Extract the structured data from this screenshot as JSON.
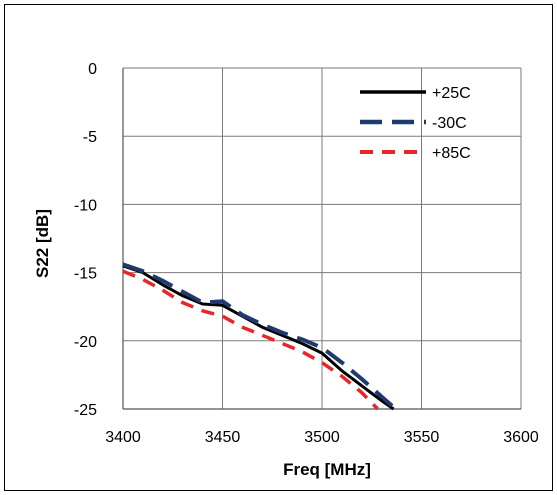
{
  "chart_data": {
    "type": "line",
    "xlabel": "Freq [MHz]",
    "ylabel": "S22 [dB]",
    "xlim": [
      3400,
      3600
    ],
    "ylim": [
      -25,
      0
    ],
    "x_ticks": [
      "3400",
      "3450",
      "3500",
      "3550",
      "3600"
    ],
    "y_ticks": [
      "0",
      "-5",
      "-10",
      "-15",
      "-20",
      "-25"
    ],
    "grid": true,
    "legend_position": "top-right",
    "series": [
      {
        "name": "+25C",
        "color": "#000000",
        "dash": "solid",
        "x": [
          3400,
          3410,
          3420,
          3430,
          3440,
          3450,
          3460,
          3470,
          3480,
          3490,
          3500,
          3510,
          3520,
          3530,
          3536
        ],
        "y": [
          -14.5,
          -15.0,
          -15.9,
          -16.7,
          -17.3,
          -17.4,
          -18.2,
          -19.0,
          -19.6,
          -20.2,
          -20.9,
          -22.2,
          -23.3,
          -24.4,
          -25.0
        ]
      },
      {
        "name": "-30C",
        "color": "#1f3a6e",
        "dash": "long-dash",
        "x": [
          3400,
          3410,
          3420,
          3430,
          3440,
          3450,
          3460,
          3470,
          3480,
          3490,
          3500,
          3510,
          3520,
          3530,
          3537
        ],
        "y": [
          -14.4,
          -14.9,
          -15.6,
          -16.4,
          -17.2,
          -17.1,
          -18.1,
          -18.8,
          -19.4,
          -19.9,
          -20.5,
          -21.6,
          -22.8,
          -24.1,
          -25.0
        ]
      },
      {
        "name": "+85C",
        "color": "#e8262a",
        "dash": "dash",
        "x": [
          3400,
          3410,
          3420,
          3430,
          3440,
          3450,
          3460,
          3470,
          3480,
          3490,
          3500,
          3510,
          3520,
          3528
        ],
        "y": [
          -14.9,
          -15.5,
          -16.3,
          -17.2,
          -17.8,
          -18.2,
          -19.0,
          -19.6,
          -20.2,
          -20.8,
          -21.6,
          -22.6,
          -23.8,
          -25.0
        ]
      }
    ]
  }
}
